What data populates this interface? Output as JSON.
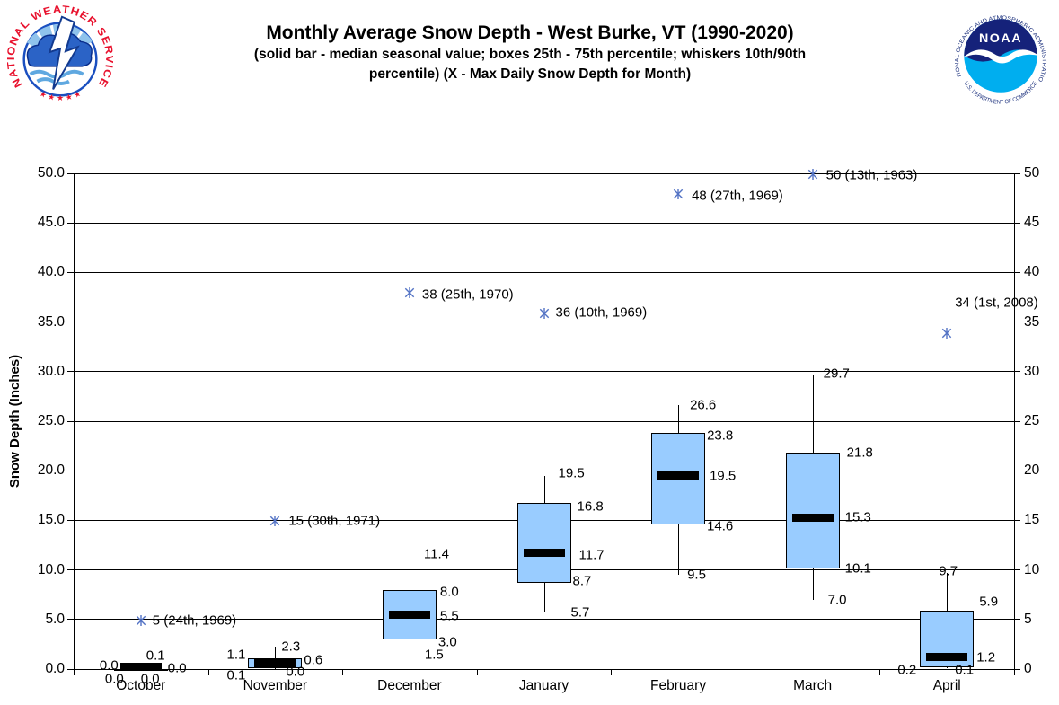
{
  "header": {
    "title": "Monthly Average Snow Depth - West Burke, VT (1990-2020)",
    "subtitle_line1": "(solid bar - median seasonal value; boxes 25th - 75th percentile; whiskers 10th/90th",
    "subtitle_line2": "percentile) (X - Max Daily Snow Depth for Month)"
  },
  "logos": {
    "nws": {
      "arc_text": "NATIONAL WEATHER SERVICE",
      "stars": "★ ★ ★ ★ ★"
    },
    "noaa": {
      "center_text": "NOAA",
      "arc_text_top": "NATIONAL OCEANIC AND ATMOSPHERIC ADMINISTRATION",
      "arc_text_bottom": "U.S. DEPARTMENT OF COMMERCE"
    }
  },
  "chart_data": {
    "type": "box",
    "title": "Monthly Average Snow Depth - West Burke, VT (1990-2020)",
    "ylabel": "Snow Depth (Inches)",
    "ylim": [
      0,
      50
    ],
    "ytick_interval": 5,
    "grid": true,
    "legend": "none",
    "left_tick_labels": [
      "0.0",
      "5.0",
      "10.0",
      "15.0",
      "20.0",
      "25.0",
      "30.0",
      "35.0",
      "40.0",
      "45.0",
      "50.0"
    ],
    "right_tick_labels": [
      "0",
      "5",
      "10",
      "15",
      "20",
      "25",
      "30",
      "35",
      "40",
      "45",
      "50"
    ],
    "categories": [
      "October",
      "November",
      "December",
      "January",
      "February",
      "March",
      "April"
    ],
    "colors": {
      "box_fill": "#99CCFF",
      "box_border": "#000000",
      "median": "#000000",
      "whisker": "#000000",
      "grid": "#000000",
      "max_marker": "#5272C4",
      "text": "#000000"
    },
    "boxes": [
      {
        "month": "October",
        "p10": 0.0,
        "p25": 0.0,
        "median": 0.0,
        "p75": 0.0,
        "p90": 0.1,
        "stat_labels": {
          "p90": "0.1",
          "p75": "0.0",
          "median": "0.0",
          "p25": "0.0",
          "p10": "0.0"
        },
        "label_pos": {
          "p90": [
            6,
            -14
          ],
          "p75": [
            30,
            -1
          ],
          "median": [
            -25,
            -4,
            "r"
          ],
          "p25": [
            0,
            11
          ],
          "p10": [
            -19,
            11,
            "r"
          ]
        },
        "max": {
          "value": 5,
          "label": "5 (24th, 1969)",
          "label_pos": [
            13,
            1
          ]
        }
      },
      {
        "month": "November",
        "p10": 0.0,
        "p25": 0.1,
        "median": 0.6,
        "p75": 1.1,
        "p90": 2.3,
        "stat_labels": {
          "p90": "2.3",
          "p75": "1.1",
          "median": "0.6",
          "p25": "0.1",
          "p10": "0.0"
        },
        "label_pos": {
          "p90": [
            7,
            0
          ],
          "p75": [
            -33,
            -4,
            "r"
          ],
          "median": [
            32,
            -3
          ],
          "p25": [
            -33,
            8,
            "r"
          ],
          "p10": [
            12,
            3
          ]
        },
        "max": {
          "value": 15,
          "label": "15 (30th, 1971)",
          "label_pos": [
            15,
            1
          ]
        }
      },
      {
        "month": "December",
        "p10": 1.5,
        "p25": 3.0,
        "median": 5.5,
        "p75": 8.0,
        "p90": 11.4,
        "stat_labels": {
          "p90": "11.4",
          "p75": "8.0",
          "median": "5.5",
          "p25": "3.0",
          "p10": "1.5"
        },
        "label_pos": {
          "p90": [
            16,
            -2
          ],
          "p75": [
            34,
            2
          ],
          "median": [
            34,
            2
          ],
          "p25": [
            32,
            3
          ],
          "p10": [
            17,
            1
          ]
        },
        "max": {
          "value": 38,
          "label": "38 (25th, 1970)",
          "label_pos": [
            14,
            3
          ]
        }
      },
      {
        "month": "January",
        "p10": 5.7,
        "p25": 8.7,
        "median": 11.7,
        "p75": 16.8,
        "p90": 19.5,
        "stat_labels": {
          "p90": "19.5",
          "p75": "16.8",
          "median": "11.7",
          "p25": "8.7",
          "p10": "5.7"
        },
        "label_pos": {
          "p90": [
            16,
            -3
          ],
          "p75": [
            37,
            4
          ],
          "median": [
            39,
            2
          ],
          "p25": [
            32,
            -2
          ],
          "p10": [
            30,
            0
          ]
        },
        "max": {
          "value": 36,
          "label": "36 (10th, 1969)",
          "label_pos": [
            13,
            0
          ]
        }
      },
      {
        "month": "February",
        "p10": 9.5,
        "p25": 14.6,
        "median": 19.5,
        "p75": 23.8,
        "p90": 26.6,
        "stat_labels": {
          "p90": "26.6",
          "p75": "23.8",
          "median": "19.5",
          "p25": "14.6",
          "p10": "9.5"
        },
        "label_pos": {
          "p90": [
            13,
            0
          ],
          "p75": [
            32,
            3
          ],
          "median": [
            35,
            0
          ],
          "p25": [
            32,
            2
          ],
          "p10": [
            10,
            0
          ]
        },
        "max": {
          "value": 48,
          "label": "48 (27th, 1969)",
          "label_pos": [
            15,
            3
          ]
        }
      },
      {
        "month": "March",
        "p10": 7.0,
        "p25": 10.1,
        "median": 15.3,
        "p75": 21.8,
        "p90": 29.7,
        "stat_labels": {
          "p90": "29.7",
          "p75": "21.8",
          "median": "15.3",
          "p25": "10.1",
          "p10": "7.0"
        },
        "label_pos": {
          "p90": [
            12,
            -1
          ],
          "p75": [
            38,
            0
          ],
          "median": [
            36,
            0
          ],
          "p25": [
            36,
            0
          ],
          "p10": [
            17,
            0
          ]
        },
        "max": {
          "value": 50,
          "label": "50 (13th, 1963)",
          "label_pos": [
            15,
            2
          ]
        }
      },
      {
        "month": "April",
        "p10": 0.1,
        "p25": 0.2,
        "median": 1.2,
        "p75": 5.9,
        "p90": 9.7,
        "stat_labels": {
          "p90": "9.7",
          "p75": "5.9",
          "median": "1.2",
          "p25": "0.2",
          "p10": "0.1"
        },
        "label_pos": {
          "p90": [
            -9,
            -2
          ],
          "p75": [
            36,
            -10
          ],
          "median": [
            33,
            0
          ],
          "p25": [
            -34,
            3,
            "r"
          ],
          "p10": [
            9,
            2
          ]
        },
        "max": {
          "value": 34,
          "label": "34 (1st, 2008)",
          "label_pos": [
            9,
            -33
          ]
        }
      }
    ]
  }
}
